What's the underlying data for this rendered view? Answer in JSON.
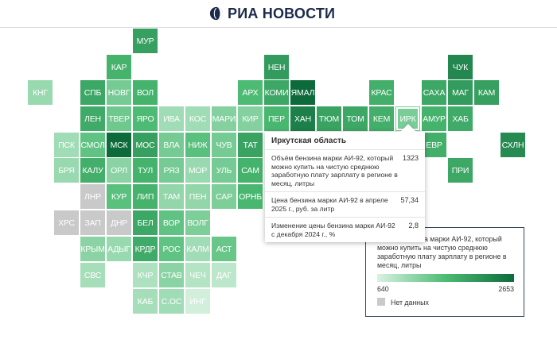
{
  "header": {
    "logo_text": "РИА НОВОСТИ",
    "logo_icon": "ria-globe-icon",
    "logo_color": "#1b2a4a"
  },
  "colors": {
    "scale_min": "#d9f2e2",
    "scale_max": "#0d6b3b",
    "no_data": "#c9c9c9"
  },
  "regions": [
    {
      "label": "МУР",
      "v": 2000
    },
    {
      "label": "КАР",
      "v": 1750
    },
    {
      "label": "НЕН",
      "v": 2050
    },
    {
      "label": "ЧУК",
      "v": 2300
    },
    {
      "label": "КНГ",
      "v": 1100
    },
    {
      "label": "СПБ",
      "v": 1900
    },
    {
      "label": "НОВГ",
      "v": 1350
    },
    {
      "label": "ВОЛ",
      "v": 1750
    },
    {
      "label": "АРХ",
      "v": 1650
    },
    {
      "label": "КОМИ",
      "v": 1900
    },
    {
      "label": "ЯМАЛ",
      "v": 2653
    },
    {
      "label": "КРАС",
      "v": 1800
    },
    {
      "label": "САХА",
      "v": 1900
    },
    {
      "label": "МАГ",
      "v": 2050
    },
    {
      "label": "КАМ",
      "v": 2000
    },
    {
      "label": "ЛЕН",
      "v": 1850
    },
    {
      "label": "ТВЕР",
      "v": 1400
    },
    {
      "label": "ЯРО",
      "v": 1650
    },
    {
      "label": "ИВА",
      "v": 1050
    },
    {
      "label": "КОС",
      "v": 1050
    },
    {
      "label": "МАРИ",
      "v": 1250
    },
    {
      "label": "КИР",
      "v": 1250
    },
    {
      "label": "ПЕР",
      "v": 1700
    },
    {
      "label": "ХАН",
      "v": 2400
    },
    {
      "label": "ТЮМ",
      "v": 1950
    },
    {
      "label": "ТОМ",
      "v": 1900
    },
    {
      "label": "КЕМ",
      "v": 1800
    },
    {
      "label": "ИРК",
      "v": 1323
    },
    {
      "label": "АМУР",
      "v": 1750
    },
    {
      "label": "ХАБ",
      "v": 1850
    },
    {
      "label": "ПСК",
      "v": 1050
    },
    {
      "label": "СМОЛ",
      "v": 1500
    },
    {
      "label": "МСК",
      "v": 2653
    },
    {
      "label": "МОС",
      "v": 2000
    },
    {
      "label": "ВЛА",
      "v": 1350
    },
    {
      "label": "НИЖ",
      "v": 1550
    },
    {
      "label": "ЧУВ",
      "v": 1350
    },
    {
      "label": "ТАТ",
      "v": 1950
    },
    {
      "label": "ЕВР",
      "v": 1800
    },
    {
      "label": "СХЛН",
      "v": 2250
    },
    {
      "label": "БРЯ",
      "v": 1100
    },
    {
      "label": "КАЛУ",
      "v": 1800
    },
    {
      "label": "ОРЛ",
      "v": 1200
    },
    {
      "label": "ТУЛ",
      "v": 1750
    },
    {
      "label": "РЯЗ",
      "v": 1350
    },
    {
      "label": "МОР",
      "v": 1100
    },
    {
      "label": "УЛЬ",
      "v": 1350
    },
    {
      "label": "САМ",
      "v": 1750
    },
    {
      "label": "ПРИ",
      "v": 1900
    },
    {
      "label": "ЛНР",
      "nodata": true
    },
    {
      "label": "КУР",
      "v": 1550
    },
    {
      "label": "ЛИП",
      "v": 1750
    },
    {
      "label": "ТАМ",
      "v": 1150
    },
    {
      "label": "ПЕН",
      "v": 1150
    },
    {
      "label": "САР",
      "v": 1300
    },
    {
      "label": "ОРНБ",
      "v": 1700
    },
    {
      "label": "ХРС",
      "nodata": true
    },
    {
      "label": "ЗАП",
      "nodata": true
    },
    {
      "label": "ДНР",
      "nodata": true
    },
    {
      "label": "БЕЛ",
      "v": 1900
    },
    {
      "label": "ВОР",
      "v": 1500
    },
    {
      "label": "ВОЛГ",
      "v": 1300
    },
    {
      "label": "КРЫМ",
      "v": 1200
    },
    {
      "label": "АДЫГ",
      "v": 1100
    },
    {
      "label": "КРДР",
      "v": 1850
    },
    {
      "label": "РОС",
      "v": 1500
    },
    {
      "label": "КАЛМ",
      "v": 1050
    },
    {
      "label": "АСТ",
      "v": 1450
    },
    {
      "label": "СВС",
      "v": 1000
    },
    {
      "label": "КЧР",
      "v": 950
    },
    {
      "label": "СТАВ",
      "v": 1200
    },
    {
      "label": "ЧЕЧ",
      "v": 900
    },
    {
      "label": "ДАГ",
      "v": 850
    },
    {
      "label": "КАБ",
      "v": 1000
    },
    {
      "label": "С.ОС",
      "v": 1050
    },
    {
      "label": "ИНГ",
      "v": 700
    }
  ],
  "tooltip": {
    "title": "Иркутская область",
    "rows": [
      {
        "label": "Объём бензина марки АИ-92, который можно купить на чистую среднюю заработную плату зарплату в регионе в месяц, литры",
        "value": "1323"
      },
      {
        "label": "Цена бензина марки АИ-92 в апреле 2025 г., руб. за литр",
        "value": "57,34"
      },
      {
        "label": "Изменение цены бензина марки АИ-92 с декабря 2024 г., %",
        "value": "2,8"
      }
    ]
  },
  "legend": {
    "title": "Объём бензина марки АИ-92, который можно купить на чистую среднюю заработную плату зарплату в регионе в месяц, литры",
    "min_label": "640",
    "max_label": "2653",
    "min": 640,
    "max": 2653,
    "no_data_label": "Нет данных"
  }
}
